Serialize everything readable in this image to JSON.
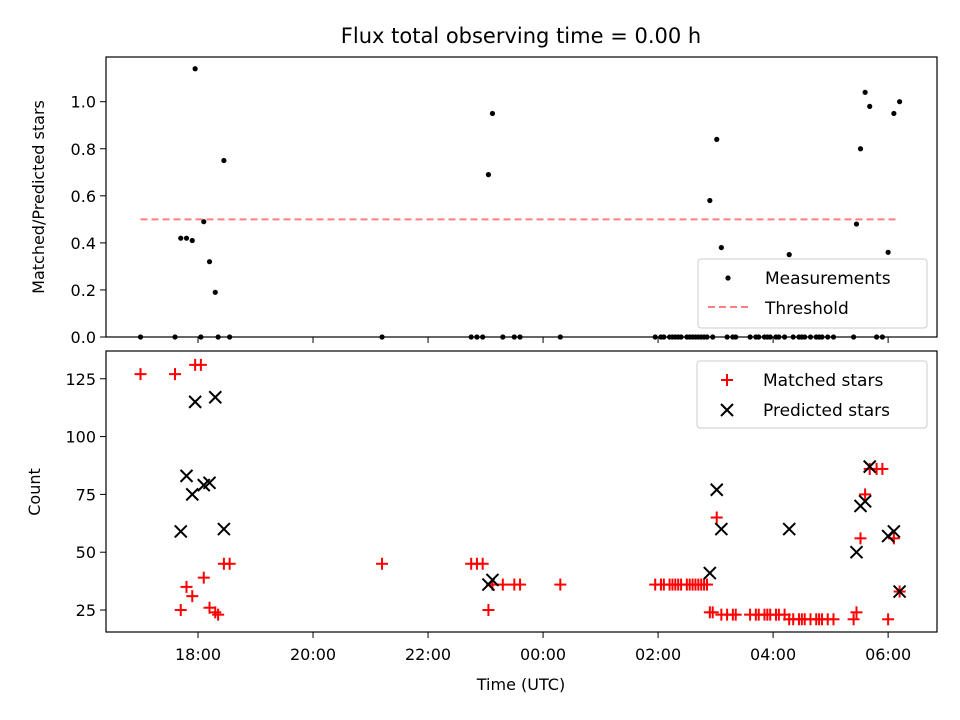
{
  "chart_data": [
    {
      "type": "scatter",
      "title": "Flux total observing time = 0.00 h",
      "xlabel": "",
      "ylabel": "Matched/Predicted stars",
      "xlim": [
        16.4,
        30.85
      ],
      "ylim": [
        0.0,
        1.19
      ],
      "yticks": [
        0.0,
        0.2,
        0.4,
        0.6,
        0.8,
        1.0
      ],
      "ytick_labels": [
        "0.0",
        "0.2",
        "0.4",
        "0.6",
        "0.8",
        "1.0"
      ],
      "threshold": {
        "value": 0.5,
        "x_range": [
          17.0,
          30.2
        ],
        "color": "#ff7f7f",
        "label": "Threshold"
      },
      "legend": {
        "position": "lower right",
        "entries": [
          "Measurements",
          "Threshold"
        ]
      },
      "series": [
        {
          "name": "Measurements",
          "color": "#000000",
          "marker": "dot",
          "points": [
            [
              17.0,
              0.0
            ],
            [
              17.6,
              0.0
            ],
            [
              17.7,
              0.42
            ],
            [
              17.8,
              0.42
            ],
            [
              17.9,
              0.41
            ],
            [
              17.95,
              1.14
            ],
            [
              18.05,
              0.0
            ],
            [
              18.1,
              0.49
            ],
            [
              18.2,
              0.32
            ],
            [
              18.3,
              0.19
            ],
            [
              18.35,
              0.0
            ],
            [
              18.45,
              0.75
            ],
            [
              18.55,
              0.0
            ],
            [
              21.2,
              0.0
            ],
            [
              22.75,
              0.0
            ],
            [
              22.85,
              0.0
            ],
            [
              22.95,
              0.0
            ],
            [
              23.05,
              0.69
            ],
            [
              23.12,
              0.95
            ],
            [
              23.3,
              0.0
            ],
            [
              23.5,
              0.0
            ],
            [
              23.6,
              0.0
            ],
            [
              24.3,
              0.0
            ],
            [
              25.95,
              0.0
            ],
            [
              26.05,
              0.0
            ],
            [
              26.1,
              0.0
            ],
            [
              26.2,
              0.0
            ],
            [
              26.25,
              0.0
            ],
            [
              26.3,
              0.0
            ],
            [
              26.35,
              0.0
            ],
            [
              26.4,
              0.0
            ],
            [
              26.5,
              0.0
            ],
            [
              26.55,
              0.0
            ],
            [
              26.6,
              0.0
            ],
            [
              26.65,
              0.0
            ],
            [
              26.7,
              0.0
            ],
            [
              26.75,
              0.0
            ],
            [
              26.8,
              0.0
            ],
            [
              26.85,
              0.0
            ],
            [
              26.9,
              0.58
            ],
            [
              26.95,
              0.0
            ],
            [
              27.02,
              0.84
            ],
            [
              27.1,
              0.38
            ],
            [
              27.2,
              0.0
            ],
            [
              27.3,
              0.0
            ],
            [
              27.35,
              0.0
            ],
            [
              27.6,
              0.0
            ],
            [
              27.7,
              0.0
            ],
            [
              27.75,
              0.0
            ],
            [
              27.85,
              0.0
            ],
            [
              27.9,
              0.0
            ],
            [
              27.95,
              0.0
            ],
            [
              28.05,
              0.0
            ],
            [
              28.1,
              0.0
            ],
            [
              28.2,
              0.0
            ],
            [
              28.28,
              0.35
            ],
            [
              28.35,
              0.0
            ],
            [
              28.45,
              0.0
            ],
            [
              28.5,
              0.0
            ],
            [
              28.55,
              0.0
            ],
            [
              28.65,
              0.0
            ],
            [
              28.75,
              0.0
            ],
            [
              28.8,
              0.0
            ],
            [
              28.85,
              0.0
            ],
            [
              28.95,
              0.0
            ],
            [
              29.05,
              0.0
            ],
            [
              29.4,
              0.0
            ],
            [
              29.45,
              0.48
            ],
            [
              29.52,
              0.8
            ],
            [
              29.6,
              1.04
            ],
            [
              29.68,
              0.98
            ],
            [
              29.8,
              0.0
            ],
            [
              29.9,
              0.0
            ],
            [
              30.0,
              0.36
            ],
            [
              30.1,
              0.95
            ],
            [
              30.2,
              1.0
            ]
          ]
        }
      ]
    },
    {
      "type": "scatter",
      "title": "",
      "xlabel": "Time (UTC)",
      "ylabel": "Count",
      "xlim": [
        16.4,
        30.85
      ],
      "ylim": [
        15.5,
        137.0
      ],
      "xticks": [
        18,
        20,
        22,
        24,
        26,
        28,
        30
      ],
      "xtick_labels": [
        "18:00",
        "20:00",
        "22:00",
        "00:00",
        "02:00",
        "04:00",
        "06:00"
      ],
      "yticks": [
        25,
        50,
        75,
        100,
        125
      ],
      "ytick_labels": [
        "25",
        "50",
        "75",
        "100",
        "125"
      ],
      "legend": {
        "position": "upper right",
        "entries": [
          "Matched stars",
          "Predicted stars"
        ]
      },
      "series": [
        {
          "name": "Matched stars",
          "color": "#ff0000",
          "marker": "plus",
          "points": [
            [
              17.0,
              127
            ],
            [
              17.6,
              127
            ],
            [
              17.7,
              25
            ],
            [
              17.8,
              35
            ],
            [
              17.9,
              31
            ],
            [
              17.95,
              131
            ],
            [
              18.05,
              131
            ],
            [
              18.1,
              39
            ],
            [
              18.2,
              26
            ],
            [
              18.3,
              24
            ],
            [
              18.35,
              23
            ],
            [
              18.45,
              45
            ],
            [
              18.55,
              45
            ],
            [
              21.2,
              45
            ],
            [
              22.75,
              45
            ],
            [
              22.85,
              45
            ],
            [
              22.95,
              45
            ],
            [
              23.05,
              25
            ],
            [
              23.12,
              36
            ],
            [
              23.3,
              36
            ],
            [
              23.5,
              36
            ],
            [
              23.6,
              36
            ],
            [
              24.3,
              36
            ],
            [
              25.95,
              36
            ],
            [
              26.05,
              36
            ],
            [
              26.1,
              36
            ],
            [
              26.2,
              36
            ],
            [
              26.25,
              36
            ],
            [
              26.3,
              36
            ],
            [
              26.35,
              36
            ],
            [
              26.4,
              36
            ],
            [
              26.5,
              36
            ],
            [
              26.55,
              36
            ],
            [
              26.6,
              36
            ],
            [
              26.65,
              36
            ],
            [
              26.7,
              36
            ],
            [
              26.75,
              36
            ],
            [
              26.8,
              36
            ],
            [
              26.85,
              36
            ],
            [
              26.9,
              24
            ],
            [
              26.95,
              24
            ],
            [
              27.02,
              65
            ],
            [
              27.1,
              23
            ],
            [
              27.2,
              23
            ],
            [
              27.3,
              23
            ],
            [
              27.35,
              23
            ],
            [
              27.6,
              23
            ],
            [
              27.7,
              23
            ],
            [
              27.75,
              23
            ],
            [
              27.85,
              23
            ],
            [
              27.9,
              23
            ],
            [
              27.95,
              23
            ],
            [
              28.05,
              23
            ],
            [
              28.1,
              23
            ],
            [
              28.2,
              23
            ],
            [
              28.28,
              21
            ],
            [
              28.35,
              21
            ],
            [
              28.45,
              21
            ],
            [
              28.5,
              21
            ],
            [
              28.55,
              21
            ],
            [
              28.65,
              21
            ],
            [
              28.75,
              21
            ],
            [
              28.8,
              21
            ],
            [
              28.85,
              21
            ],
            [
              28.95,
              21
            ],
            [
              29.05,
              21
            ],
            [
              29.4,
              21
            ],
            [
              29.45,
              24
            ],
            [
              29.52,
              56
            ],
            [
              29.6,
              75
            ],
            [
              29.68,
              86
            ],
            [
              29.8,
              86
            ],
            [
              29.9,
              86
            ],
            [
              30.0,
              21
            ],
            [
              30.1,
              56
            ],
            [
              30.2,
              33
            ]
          ]
        },
        {
          "name": "Predicted stars",
          "color": "#000000",
          "marker": "x",
          "points": [
            [
              17.7,
              59
            ],
            [
              17.8,
              83
            ],
            [
              17.9,
              75
            ],
            [
              17.95,
              115
            ],
            [
              18.1,
              79
            ],
            [
              18.2,
              80
            ],
            [
              18.3,
              117
            ],
            [
              18.45,
              60
            ],
            [
              23.05,
              36
            ],
            [
              23.12,
              38
            ],
            [
              26.9,
              41
            ],
            [
              27.02,
              77
            ],
            [
              27.1,
              60
            ],
            [
              28.28,
              60
            ],
            [
              29.45,
              50
            ],
            [
              29.52,
              70
            ],
            [
              29.6,
              72
            ],
            [
              29.68,
              87
            ],
            [
              30.0,
              57
            ],
            [
              30.1,
              59
            ],
            [
              30.2,
              33
            ]
          ]
        }
      ]
    }
  ]
}
